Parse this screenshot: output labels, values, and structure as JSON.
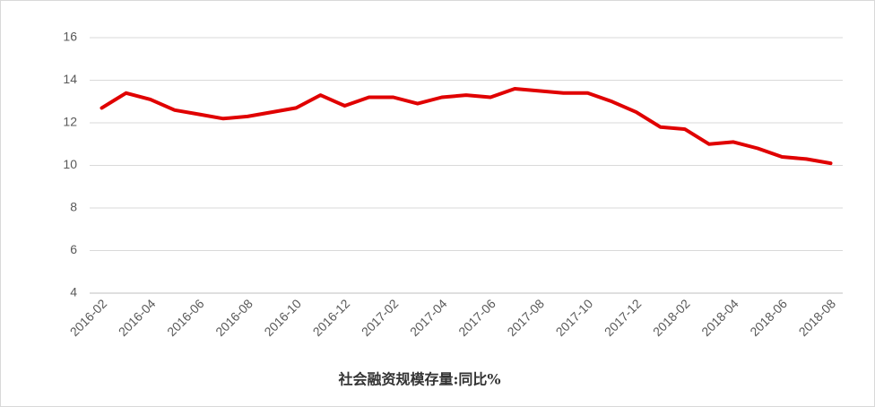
{
  "chart_data": {
    "type": "line",
    "categories": [
      "2016-02",
      null,
      "2016-04",
      null,
      "2016-06",
      null,
      "2016-08",
      null,
      "2016-10",
      null,
      "2016-12",
      null,
      "2017-02",
      null,
      "2017-04",
      null,
      "2017-06",
      null,
      "2017-08",
      null,
      "2017-10",
      null,
      "2017-12",
      null,
      "2018-02",
      null,
      "2018-04",
      null,
      "2018-06",
      null,
      "2018-08"
    ],
    "series": [
      {
        "name": "社会融资规模存量:同比%",
        "color": "#e00000",
        "values": [
          12.7,
          13.4,
          13.1,
          12.6,
          12.4,
          12.2,
          12.3,
          12.5,
          12.7,
          13.3,
          12.8,
          13.2,
          13.2,
          12.9,
          13.2,
          13.3,
          13.2,
          13.6,
          13.5,
          13.4,
          13.4,
          13.0,
          12.5,
          11.8,
          11.7,
          11.0,
          11.1,
          10.8,
          10.4,
          10.3,
          10.1
        ]
      }
    ],
    "ylim": [
      4,
      16
    ],
    "yticks": [
      4,
      6,
      8,
      10,
      12,
      14,
      16
    ],
    "grid": true
  }
}
